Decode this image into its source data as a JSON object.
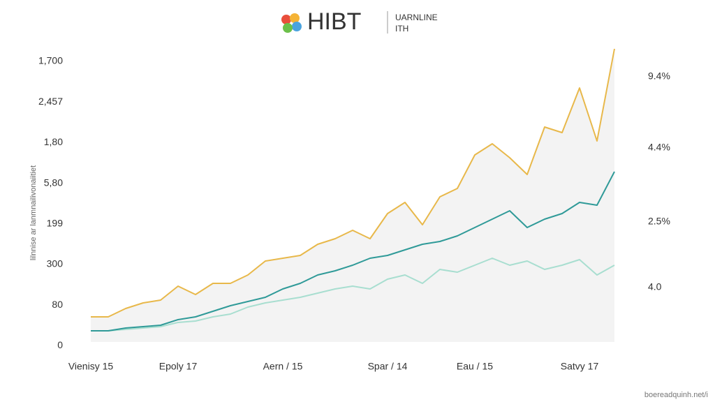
{
  "chart_data": {
    "type": "line",
    "title": "HIBT",
    "subtitle": [
      "UARNLINE",
      "ITH"
    ],
    "y_axis_label": "lilnnise ar lanmnailivonaiitiet",
    "y_labels": [
      "1,700",
      "2,457",
      "1,80",
      "5,80",
      "199",
      "300",
      "80",
      "0"
    ],
    "y2_labels": [
      "9.4%",
      "4.4%",
      "2.5%",
      "4.0"
    ],
    "footer": "boereadquinh.net/i",
    "categories": [
      "Vienisy 15",
      null,
      null,
      null,
      null,
      "Epoly 17",
      null,
      null,
      null,
      null,
      null,
      "Aern / 15",
      null,
      null,
      null,
      null,
      null,
      "Spar / 14",
      null,
      null,
      null,
      null,
      "Eau / 15",
      null,
      null,
      null,
      null,
      null,
      "Satvy 17",
      null,
      null
    ],
    "ylim": [
      0,
      105
    ],
    "area_under": 0,
    "series": [
      {
        "color": "#e8b84a",
        "values": [
          9,
          9,
          12,
          14,
          15,
          20,
          17,
          21,
          21,
          24,
          29,
          30,
          31,
          35,
          37,
          40,
          37,
          46,
          50,
          42,
          52,
          55,
          67,
          71,
          66,
          60,
          77,
          75,
          91,
          72,
          105
        ]
      },
      {
        "color": "#2f9a98",
        "values": [
          4,
          4,
          5,
          5.5,
          6,
          8,
          9,
          11,
          13,
          14.5,
          16,
          19,
          21,
          24,
          25.5,
          27.5,
          30,
          31,
          33,
          35,
          36,
          38,
          41,
          44,
          47,
          41,
          44,
          46,
          50,
          49,
          61
        ]
      },
      {
        "color": "#a8ded0",
        "values": [
          4,
          4,
          4.5,
          5,
          5.5,
          7,
          7.5,
          9,
          10,
          12.5,
          14,
          15,
          16,
          17.5,
          19,
          20,
          19,
          22.5,
          24,
          21,
          26,
          25,
          27.5,
          30,
          27.5,
          29,
          26,
          27.5,
          29.5,
          24,
          27.5
        ]
      }
    ]
  }
}
